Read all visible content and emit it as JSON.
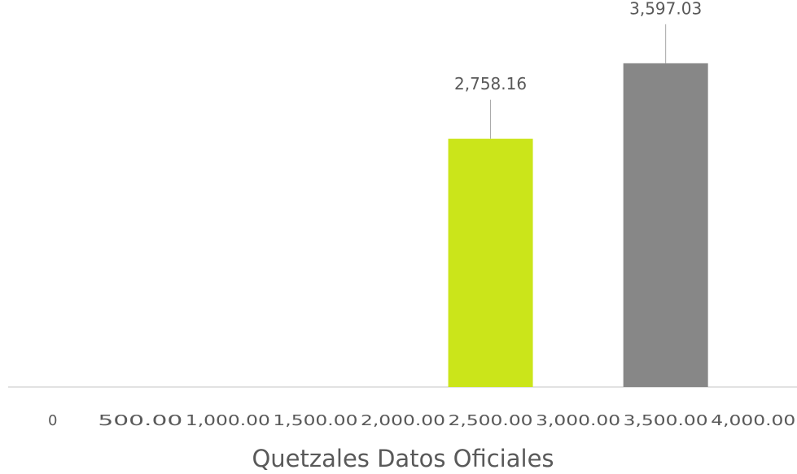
{
  "chart_data": {
    "type": "bar",
    "x_label": "Quetzales Datos Oficiales",
    "categories": [
      "0",
      "500.00",
      "1,000.00",
      "1,500.00",
      "2,000.00",
      "2,500.00",
      "3,000.00",
      "3,500.00",
      "4,000.00"
    ],
    "values": [
      null,
      null,
      null,
      null,
      null,
      2758.16,
      null,
      3597.03,
      null
    ],
    "value_labels": [
      null,
      null,
      null,
      null,
      null,
      "2,758.16",
      null,
      "3,597.03",
      null
    ],
    "colors": [
      null,
      null,
      null,
      null,
      null,
      "#cbe51a",
      null,
      "#878787",
      null
    ],
    "ylim": [
      0,
      4300
    ]
  }
}
